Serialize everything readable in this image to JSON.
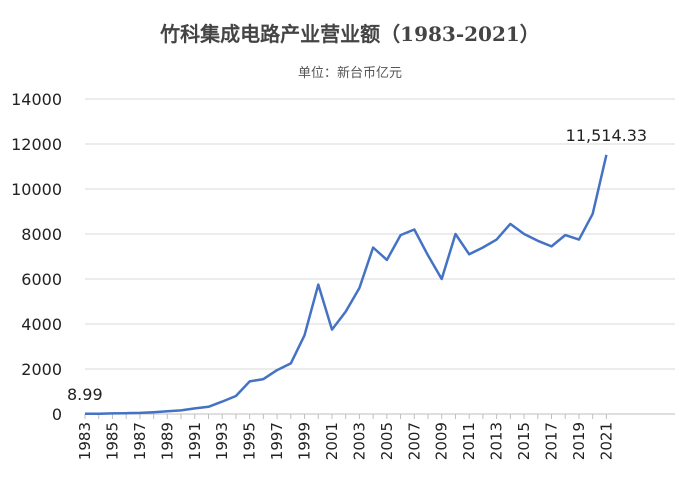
{
  "chart_data": {
    "type": "line",
    "title": "竹科集成电路产业营业额（1983-2021）",
    "subtitle": "单位：新台币亿元",
    "xlabel": "",
    "ylabel": "",
    "ylim": [
      0,
      14000
    ],
    "yticks": [
      "0",
      "2000",
      "4000",
      "6000",
      "8000",
      "10000",
      "12000",
      "14000"
    ],
    "xticks": [
      "1983",
      "1985",
      "1987",
      "1989",
      "1991",
      "1993",
      "1995",
      "1997",
      "1999",
      "2001",
      "2003",
      "2005",
      "2007",
      "2009",
      "2011",
      "2013",
      "2015",
      "2017",
      "2019",
      "2021"
    ],
    "grid": true,
    "color": "#4472C4",
    "series": [
      {
        "x": [
          1983,
          1984,
          1985,
          1986,
          1987,
          1988,
          1989,
          1990,
          1991,
          1992,
          1993,
          1994,
          1995,
          1996,
          1997,
          1998,
          1999,
          2000,
          2001,
          2002,
          2003,
          2004,
          2005,
          2006,
          2007,
          2008,
          2009,
          2010,
          2011,
          2012,
          2013,
          2014,
          2015,
          2016,
          2017,
          2018,
          2019,
          2020,
          2021
        ],
        "values": [
          8.99,
          15,
          25,
          35,
          50,
          80,
          120,
          160,
          250,
          320,
          550,
          800,
          1450,
          1550,
          1950,
          2250,
          3500,
          5750,
          3750,
          4550,
          5600,
          7400,
          6850,
          7950,
          8200,
          7050,
          6000,
          8000,
          7100,
          7400,
          7750,
          8450,
          8000,
          7700,
          7450,
          7950,
          7750,
          8900,
          11514.33
        ]
      }
    ],
    "annotations": [
      {
        "label": "8.99",
        "x": 1983,
        "y": 8.99
      },
      {
        "label": "11,514.33",
        "x": 2021,
        "y": 11514.33
      }
    ]
  }
}
